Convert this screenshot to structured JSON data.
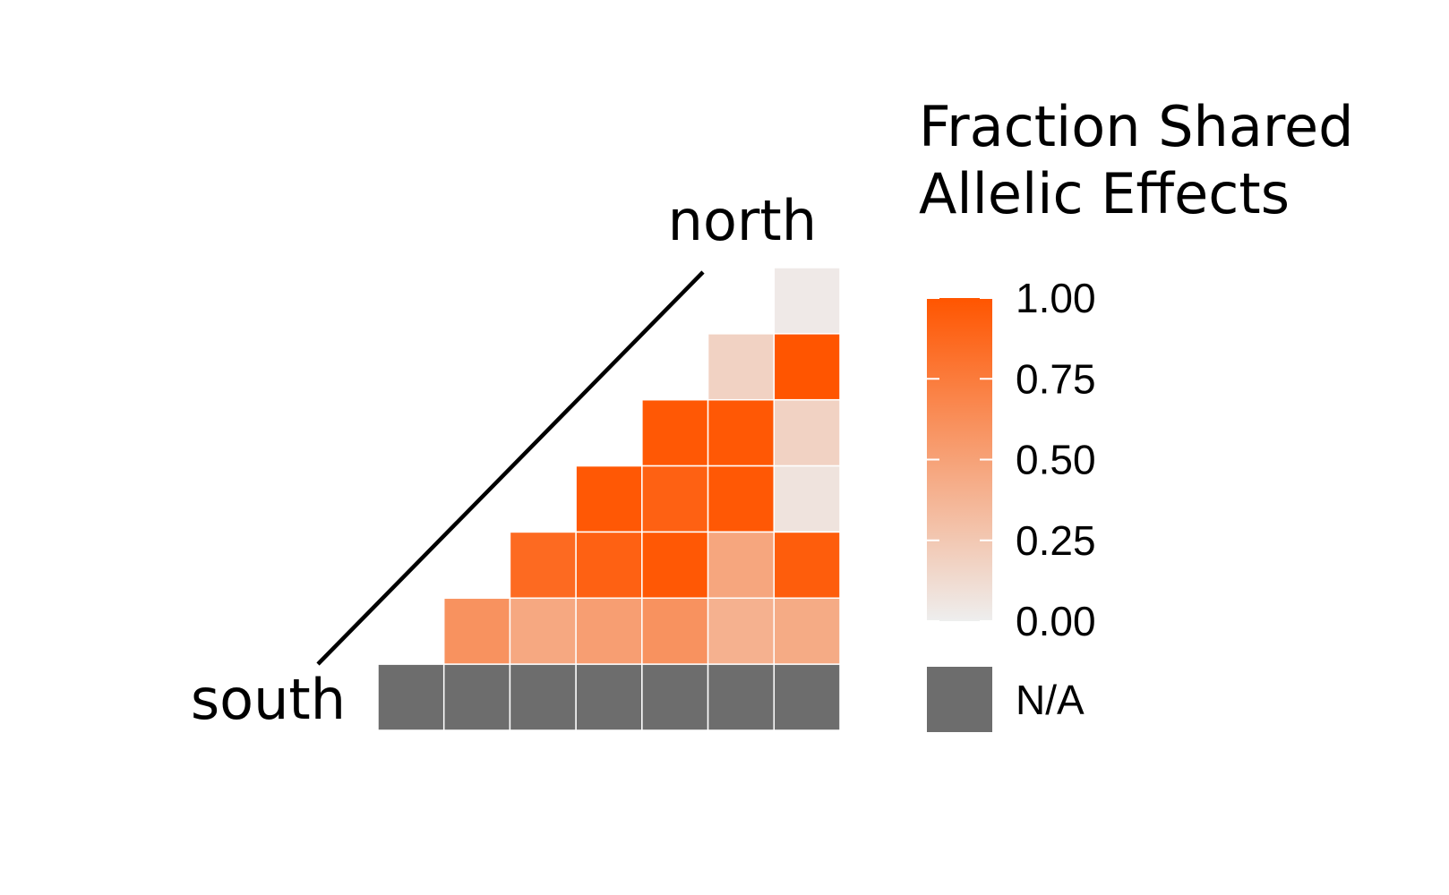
{
  "chart_data": {
    "type": "heatmap",
    "title": "",
    "xlabel": "",
    "ylabel": "",
    "corner_labels": {
      "top": "north",
      "bottom": "south"
    },
    "legend": {
      "title_lines": [
        "Fraction Shared",
        "Allelic Effects"
      ],
      "ticks": [
        1.0,
        0.75,
        0.5,
        0.25,
        0.0
      ],
      "tick_labels": [
        "1.00",
        "0.75",
        "0.50",
        "0.25",
        "0.00"
      ],
      "range": [
        0,
        1
      ],
      "na_label": "N/A",
      "placement": "right"
    },
    "colors": {
      "low": "#EEEEEE",
      "high": "#FF5500",
      "na": "#6D6D6D",
      "diagonal_line": "#000000"
    },
    "n_cols": 7,
    "n_rows": 7,
    "rows": [
      [
        null,
        null,
        null,
        null,
        null,
        null,
        0.03
      ],
      [
        null,
        null,
        null,
        null,
        null,
        0.18,
        1.0
      ],
      [
        null,
        null,
        null,
        null,
        0.98,
        0.98,
        0.18
      ],
      [
        null,
        null,
        null,
        0.98,
        0.92,
        0.98,
        0.07
      ],
      [
        null,
        null,
        0.86,
        0.92,
        0.98,
        0.47,
        0.95
      ],
      [
        null,
        0.6,
        0.46,
        0.52,
        0.6,
        0.4,
        0.44
      ],
      [
        "NA",
        "NA",
        "NA",
        "NA",
        "NA",
        "NA",
        "NA"
      ]
    ]
  }
}
